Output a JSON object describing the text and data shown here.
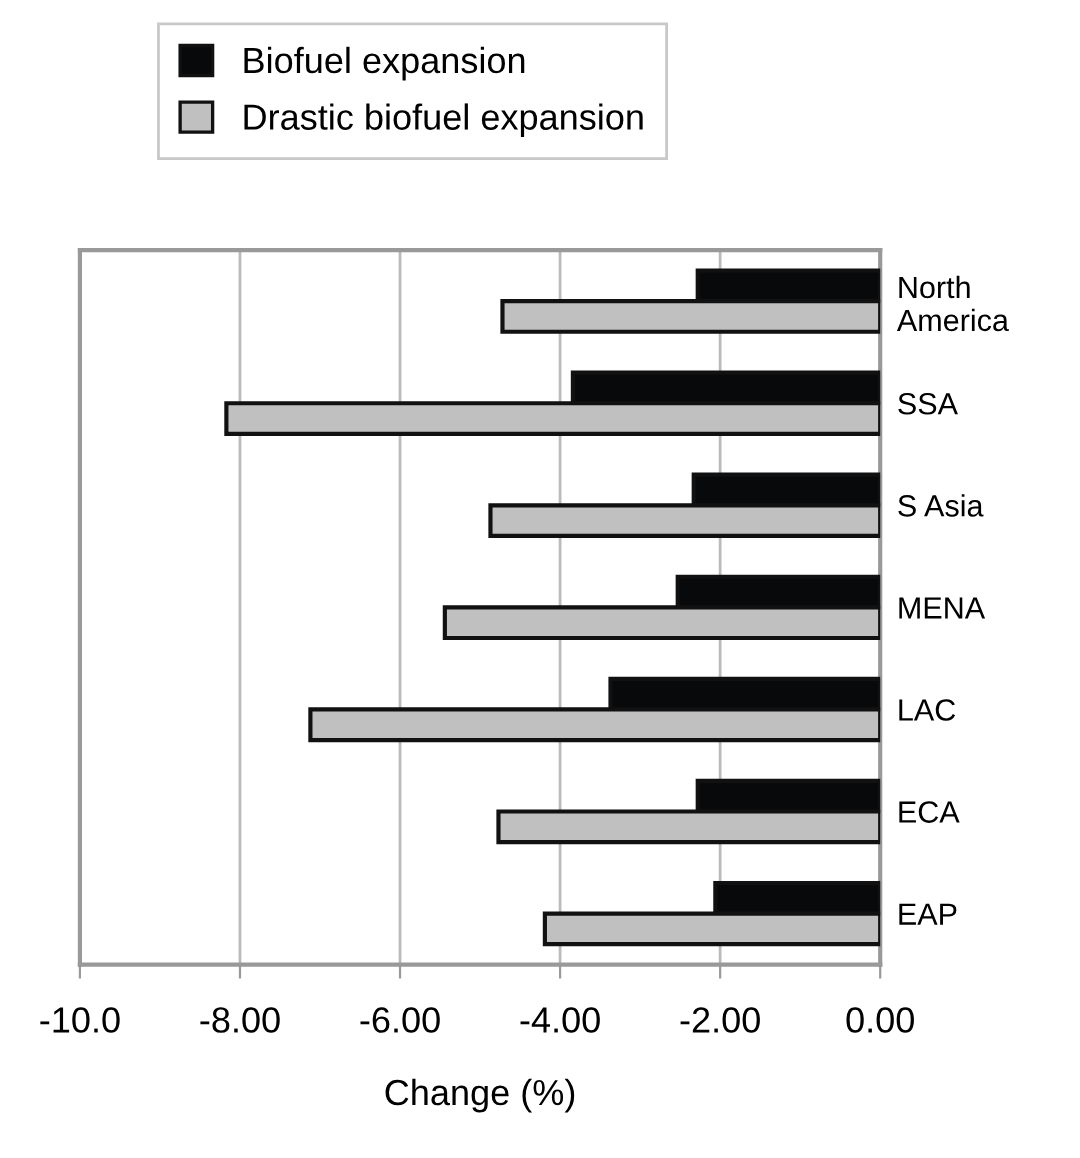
{
  "chart_data": {
    "type": "bar",
    "orientation": "horizontal",
    "xlabel": "Change (%)",
    "categories": [
      "North\nAmerica",
      "SSA",
      "S Asia",
      "MENA",
      "LAC",
      "ECA",
      "EAP"
    ],
    "series": [
      {
        "name": "Biofuel expansion",
        "color": "#08090b",
        "values": [
          -2.28,
          -3.84,
          -2.33,
          -2.53,
          -3.37,
          -2.28,
          -2.06
        ]
      },
      {
        "name": "Drastic biofuel expansion",
        "color": "#c0c0c0",
        "values": [
          -4.72,
          -8.17,
          -4.87,
          -5.44,
          -7.12,
          -4.77,
          -4.19
        ]
      }
    ],
    "xlim": [
      -10,
      0
    ],
    "xticks": [
      {
        "value": -10,
        "label": "-10.0"
      },
      {
        "value": -8,
        "label": "-8.00"
      },
      {
        "value": -6,
        "label": "-6.00"
      },
      {
        "value": -4,
        "label": "-4.00"
      },
      {
        "value": -2,
        "label": "-2.00"
      },
      {
        "value": 0,
        "label": "0.00"
      }
    ],
    "grid": "x",
    "legend": "top"
  }
}
